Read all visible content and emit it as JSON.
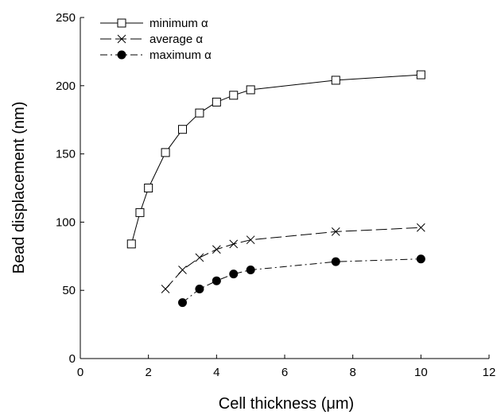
{
  "chart_data": {
    "type": "line",
    "xlabel": "Cell thickness (μm)",
    "ylabel": "Bead displacement (nm)",
    "xlim": [
      0,
      12
    ],
    "ylim": [
      0,
      250
    ],
    "xticks": [
      "0",
      "2",
      "4",
      "6",
      "8",
      "10",
      "12"
    ],
    "yticks": [
      "0",
      "50",
      "100",
      "150",
      "200",
      "250"
    ],
    "grid": false,
    "legend_position": "top-left",
    "series": [
      {
        "name": "minimum α",
        "marker": "open-square",
        "line_style": "solid",
        "x": [
          1.5,
          1.75,
          2,
          2.5,
          3,
          3.5,
          4,
          4.5,
          5,
          7.5,
          10
        ],
        "y": [
          84,
          107,
          125,
          151,
          168,
          180,
          188,
          193,
          197,
          204,
          208
        ]
      },
      {
        "name": "average α",
        "marker": "x",
        "line_style": "dash",
        "x": [
          2.5,
          3,
          3.5,
          4,
          4.5,
          5,
          7.5,
          10
        ],
        "y": [
          51,
          65,
          74,
          80,
          84,
          87,
          93,
          96
        ]
      },
      {
        "name": "maximum α",
        "marker": "filled-circle",
        "line_style": "dash-dot",
        "x": [
          3,
          3.5,
          4,
          4.5,
          5,
          7.5,
          10
        ],
        "y": [
          41,
          51,
          57,
          62,
          65,
          71,
          73
        ]
      }
    ]
  }
}
